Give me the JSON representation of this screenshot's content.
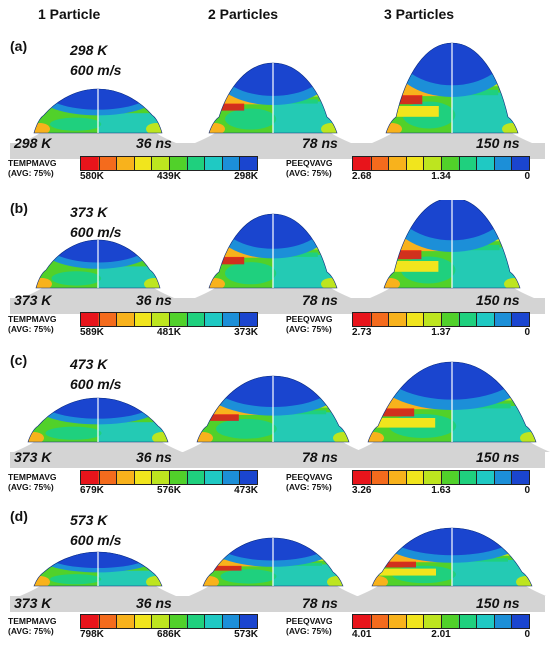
{
  "columns": [
    "1 Particle",
    "2 Particles",
    "3 Particles"
  ],
  "panels": [
    {
      "label": "(a)",
      "temperature": "298 K",
      "velocity": "600 m/s",
      "substrate_temp": "298 K",
      "times": [
        "36 ns",
        "78 ns",
        "150 ns"
      ],
      "temp_legend": {
        "title1": "TEMPMAVG",
        "title2": "(AVG: 75%)",
        "ticks": [
          "580K",
          "439K",
          "298K"
        ]
      },
      "peeq_legend": {
        "title1": "PEEQVAVG",
        "title2": "(AVG: 75%)",
        "ticks": [
          "2.68",
          "1.34",
          "0"
        ]
      }
    },
    {
      "label": "(b)",
      "temperature": "373 K",
      "velocity": "600 m/s",
      "substrate_temp": "373 K",
      "times": [
        "36 ns",
        "78 ns",
        "150 ns"
      ],
      "temp_legend": {
        "title1": "TEMPMAVG",
        "title2": "(AVG: 75%)",
        "ticks": [
          "589K",
          "481K",
          "373K"
        ]
      },
      "peeq_legend": {
        "title1": "PEEQVAVG",
        "title2": "(AVG: 75%)",
        "ticks": [
          "2.73",
          "1.37",
          "0"
        ]
      }
    },
    {
      "label": "(c)",
      "temperature": "473 K",
      "velocity": "600 m/s",
      "substrate_temp": "373 K",
      "times": [
        "36 ns",
        "78 ns",
        "150 ns"
      ],
      "temp_legend": {
        "title1": "TEMPMAVG",
        "title2": "(AVG: 75%)",
        "ticks": [
          "679K",
          "576K",
          "473K"
        ]
      },
      "peeq_legend": {
        "title1": "PEEQVAVG",
        "title2": "(AVG: 75%)",
        "ticks": [
          "3.26",
          "1.63",
          "0"
        ]
      }
    },
    {
      "label": "(d)",
      "temperature": "573 K",
      "velocity": "600 m/s",
      "substrate_temp": "373 K",
      "times": [
        "36 ns",
        "78 ns",
        "150 ns"
      ],
      "temp_legend": {
        "title1": "TEMPMAVG",
        "title2": "(AVG: 75%)",
        "ticks": [
          "798K",
          "686K",
          "573K"
        ]
      },
      "peeq_legend": {
        "title1": "PEEQVAVG",
        "title2": "(AVG: 75%)",
        "ticks": [
          "4.01",
          "2.01",
          "0"
        ]
      }
    }
  ],
  "colors": {
    "substrate": "#d4d4d4",
    "scale": [
      "#e8141b",
      "#f46b1d",
      "#f8b21c",
      "#f1e51d",
      "#bde51f",
      "#51d12a",
      "#1fd07e",
      "#1fc9c3",
      "#1c8fd8",
      "#1a45cf"
    ]
  }
}
